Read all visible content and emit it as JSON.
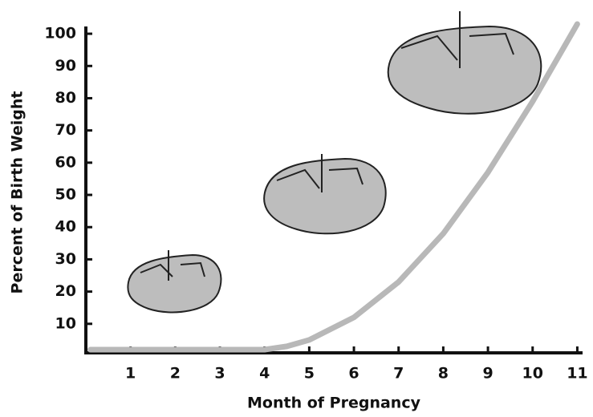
{
  "chart_data": {
    "type": "line",
    "xlabel": "Month of Pregnancy",
    "ylabel": "Percent of Birth Weight",
    "x": [
      0.1,
      1,
      2,
      3,
      4,
      4.5,
      5,
      6,
      7,
      8,
      9,
      10,
      11
    ],
    "series": [
      {
        "color": "#b8b8b8",
        "values": [
          2,
          2,
          2,
          2,
          2,
          3,
          5,
          12,
          23,
          38,
          57,
          79,
          103
        ]
      }
    ],
    "xlim": [
      0,
      11.1
    ],
    "ylim": [
      0,
      104
    ],
    "xticks": [
      1,
      2,
      3,
      4,
      5,
      6,
      7,
      8,
      9,
      10,
      11
    ],
    "yticks": [
      10,
      20,
      30,
      40,
      50,
      60,
      70,
      80,
      90,
      100
    ]
  }
}
